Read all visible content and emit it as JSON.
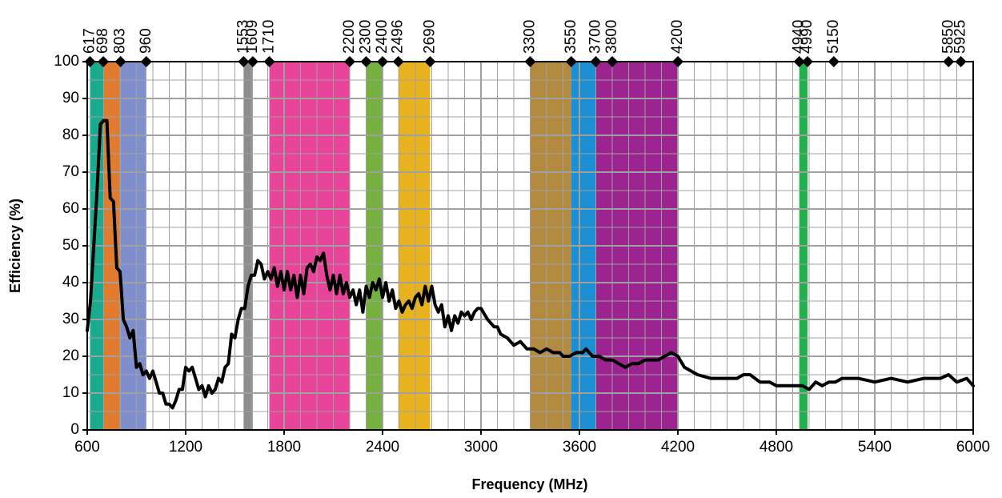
{
  "chart_data": {
    "type": "line",
    "x_label": "Frequency (MHz)",
    "y_label": "Efficiency (%)",
    "xlim": [
      600,
      6000
    ],
    "xticks": [
      600,
      1200,
      1800,
      2400,
      3000,
      3600,
      4200,
      4800,
      5400,
      6000
    ],
    "ylim": [
      0,
      100
    ],
    "yticks": [
      0,
      10,
      20,
      30,
      40,
      50,
      60,
      70,
      80,
      90,
      100
    ],
    "x_minor_ticks": [
      700,
      800,
      900,
      1000,
      1100,
      1300,
      1400,
      1500,
      1600,
      1700,
      1900,
      2000,
      2100,
      2200,
      2300,
      2500,
      2600,
      2700,
      2800,
      2900,
      3100,
      3200,
      3300,
      3400,
      3500,
      3700,
      3800,
      3900,
      4000,
      4100,
      4300,
      4400,
      4500,
      4600,
      4700,
      4900,
      5000,
      5100,
      5200,
      5300,
      5500,
      5600,
      5700,
      5800,
      5900
    ],
    "y_minor_ticks": [
      5,
      15,
      25,
      35,
      45,
      55,
      65,
      75,
      85,
      95
    ],
    "grid": true,
    "grid_color": "#a0a0a0",
    "bands": [
      {
        "start": 617,
        "end": 698,
        "color": "#1aab8e"
      },
      {
        "start": 698,
        "end": 803,
        "color": "#e07b30"
      },
      {
        "start": 803,
        "end": 960,
        "color": "#7f8fcc"
      },
      {
        "start": 1553,
        "end": 1609,
        "color": "#8c8c8c"
      },
      {
        "start": 1710,
        "end": 2200,
        "color": "#e8449a"
      },
      {
        "start": 2300,
        "end": 2400,
        "color": "#76b041"
      },
      {
        "start": 2496,
        "end": 2690,
        "color": "#e8b21f"
      },
      {
        "start": 3300,
        "end": 3550,
        "color": "#b38b40"
      },
      {
        "start": 3550,
        "end": 3700,
        "color": "#1b8fd1"
      },
      {
        "start": 3700,
        "end": 4200,
        "color": "#9c2491"
      },
      {
        "start": 4940,
        "end": 4990,
        "color": "#21b04b"
      }
    ],
    "markers": [
      617,
      698,
      803,
      960,
      1553,
      1609,
      1710,
      2200,
      2300,
      2400,
      2496,
      2690,
      3300,
      3550,
      3700,
      3800,
      4200,
      4940,
      4990,
      5150,
      5850,
      5925
    ],
    "series": [
      {
        "color": "#000000",
        "x": [
          600,
          620,
          640,
          660,
          680,
          700,
          720,
          740,
          760,
          780,
          800,
          820,
          840,
          860,
          880,
          900,
          920,
          940,
          960,
          980,
          1000,
          1020,
          1040,
          1060,
          1080,
          1100,
          1120,
          1140,
          1160,
          1180,
          1200,
          1220,
          1240,
          1260,
          1280,
          1300,
          1320,
          1340,
          1360,
          1380,
          1400,
          1420,
          1440,
          1460,
          1480,
          1500,
          1520,
          1540,
          1560,
          1580,
          1600,
          1620,
          1640,
          1660,
          1680,
          1700,
          1720,
          1740,
          1760,
          1780,
          1800,
          1820,
          1840,
          1860,
          1880,
          1900,
          1920,
          1940,
          1960,
          1980,
          2000,
          2020,
          2040,
          2060,
          2080,
          2100,
          2120,
          2140,
          2160,
          2180,
          2200,
          2220,
          2240,
          2260,
          2280,
          2300,
          2320,
          2340,
          2360,
          2380,
          2400,
          2420,
          2440,
          2460,
          2480,
          2500,
          2520,
          2540,
          2560,
          2580,
          2600,
          2620,
          2640,
          2660,
          2680,
          2700,
          2720,
          2740,
          2760,
          2780,
          2800,
          2820,
          2840,
          2860,
          2880,
          2900,
          2920,
          2940,
          2960,
          2980,
          3000,
          3040,
          3080,
          3100,
          3120,
          3160,
          3200,
          3240,
          3280,
          3320,
          3360,
          3400,
          3440,
          3480,
          3500,
          3540,
          3580,
          3620,
          3640,
          3680,
          3720,
          3760,
          3800,
          3840,
          3880,
          3920,
          3960,
          4000,
          4040,
          4080,
          4120,
          4160,
          4200,
          4240,
          4280,
          4320,
          4400,
          4480,
          4560,
          4600,
          4640,
          4700,
          4760,
          4800,
          4880,
          4960,
          5000,
          5040,
          5080,
          5120,
          5160,
          5200,
          5300,
          5400,
          5500,
          5600,
          5700,
          5800,
          5850,
          5900,
          5960,
          6000
        ],
        "values": [
          27,
          35,
          50,
          65,
          83,
          84,
          84,
          63,
          62,
          44,
          43,
          30,
          28,
          25,
          27,
          17,
          18,
          15,
          16,
          14,
          16,
          13,
          10,
          10,
          7,
          7,
          6,
          8,
          11,
          11,
          17,
          16,
          17,
          14,
          11,
          12,
          9,
          12,
          10,
          11,
          14,
          13,
          17,
          18,
          26,
          25,
          30,
          33,
          33,
          39,
          42,
          42,
          46,
          45,
          41,
          43,
          41,
          44,
          39,
          43,
          38,
          43,
          38,
          42,
          36,
          42,
          37,
          44,
          45,
          43,
          47,
          46,
          48,
          42,
          38,
          42,
          37,
          42,
          37,
          40,
          36,
          38,
          34,
          38,
          32,
          39,
          36,
          40,
          38,
          41,
          36,
          40,
          35,
          38,
          33,
          35,
          32,
          34,
          35,
          33,
          36,
          37,
          34,
          39,
          35,
          39,
          34,
          32,
          34,
          28,
          31,
          27,
          31,
          29,
          32,
          31,
          32,
          30,
          32,
          33,
          33,
          30,
          28,
          28,
          26,
          25,
          23,
          24,
          22,
          22,
          21,
          22,
          21,
          21,
          20,
          20,
          21,
          21,
          22,
          20,
          20,
          19,
          19,
          18,
          17,
          18,
          18,
          19,
          19,
          19,
          20,
          21,
          20,
          17,
          16,
          15,
          14,
          14,
          14,
          15,
          15,
          13,
          13,
          12,
          12,
          12,
          11,
          13,
          12,
          13,
          13,
          14,
          14,
          13,
          14,
          13,
          14,
          14,
          15,
          13,
          14,
          12
        ]
      }
    ]
  }
}
